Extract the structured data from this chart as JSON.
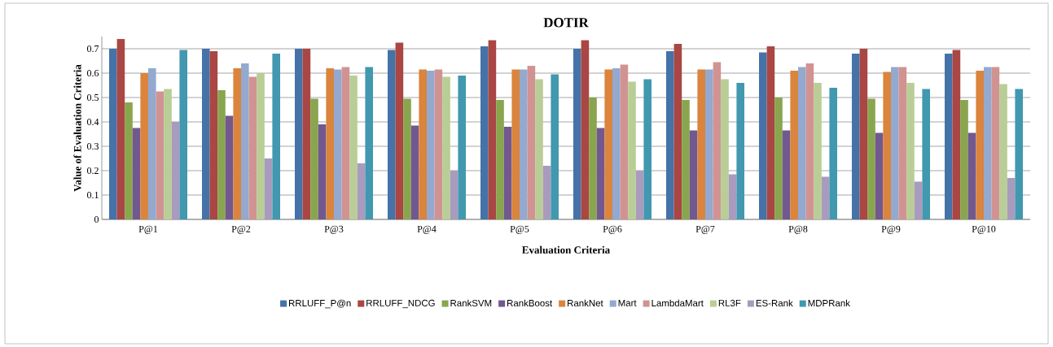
{
  "chart_data": {
    "type": "bar",
    "title": "DOTIR",
    "xlabel": "Evaluation Criteria",
    "ylabel": "Value of Evaluation Criteria",
    "categories": [
      "P@1",
      "P@2",
      "P@3",
      "P@4",
      "P@5",
      "P@6",
      "P@7",
      "P@8",
      "P@9",
      "P@10"
    ],
    "ylim": [
      0,
      0.75
    ],
    "yticks": [
      0,
      0.1,
      0.2,
      0.3,
      0.4,
      0.5,
      0.6,
      0.7
    ],
    "grid": "y",
    "legend": "bottom",
    "series": [
      {
        "name": "RRLUFF_P@n",
        "color": "#4572a7",
        "values": [
          0.7,
          0.7,
          0.7,
          0.695,
          0.71,
          0.7,
          0.69,
          0.685,
          0.68,
          0.68
        ]
      },
      {
        "name": "RRLUFF_NDCG",
        "color": "#aa4643",
        "values": [
          0.74,
          0.69,
          0.7,
          0.725,
          0.735,
          0.735,
          0.72,
          0.71,
          0.7,
          0.695
        ]
      },
      {
        "name": "RankSVM",
        "color": "#89a54e",
        "values": [
          0.48,
          0.53,
          0.495,
          0.495,
          0.49,
          0.5,
          0.49,
          0.5,
          0.495,
          0.49
        ]
      },
      {
        "name": "RankBoost",
        "color": "#71588f",
        "values": [
          0.375,
          0.425,
          0.39,
          0.385,
          0.38,
          0.375,
          0.365,
          0.365,
          0.355,
          0.355
        ]
      },
      {
        "name": "RankNet",
        "color": "#db843d",
        "values": [
          0.6,
          0.62,
          0.62,
          0.615,
          0.615,
          0.615,
          0.615,
          0.61,
          0.605,
          0.61
        ]
      },
      {
        "name": "Mart",
        "color": "#93a9cf",
        "values": [
          0.62,
          0.64,
          0.615,
          0.61,
          0.615,
          0.62,
          0.615,
          0.625,
          0.625,
          0.625
        ]
      },
      {
        "name": "LambdaMart",
        "color": "#d19392",
        "values": [
          0.525,
          0.585,
          0.625,
          0.615,
          0.63,
          0.635,
          0.645,
          0.64,
          0.625,
          0.625
        ]
      },
      {
        "name": "RL3F",
        "color": "#b9cd96",
        "values": [
          0.535,
          0.6,
          0.59,
          0.585,
          0.575,
          0.565,
          0.575,
          0.56,
          0.56,
          0.555
        ]
      },
      {
        "name": "ES-Rank",
        "color": "#a99bbd",
        "values": [
          0.4,
          0.25,
          0.23,
          0.2,
          0.22,
          0.2,
          0.185,
          0.175,
          0.155,
          0.17
        ]
      },
      {
        "name": "MDPRank",
        "color": "#4198af",
        "values": [
          0.695,
          0.68,
          0.625,
          0.59,
          0.595,
          0.575,
          0.56,
          0.54,
          0.535,
          0.535
        ]
      }
    ]
  }
}
